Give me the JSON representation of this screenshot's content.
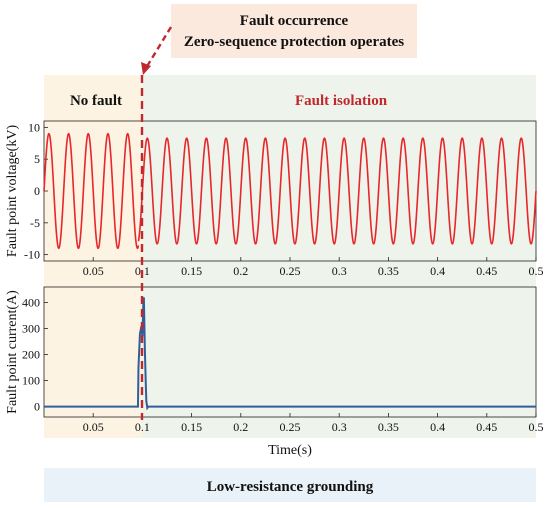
{
  "annotations": {
    "event_line1": "Fault occurrence",
    "event_line2": "Zero-sequence protection operates",
    "pre_region": "No fault",
    "post_region": "Fault isolation",
    "footer": "Low-resistance grounding"
  },
  "colors": {
    "voltage": "#e8262b",
    "current": "#2e5f9a",
    "pre_fill": "#fdf3e3",
    "post_fill": "#eef4ec",
    "event_box": "#fbe9dd",
    "footer_box": "#e9f2f8",
    "fault_line": "#c0282d",
    "post_label": "#c0282d"
  },
  "chart_data": [
    {
      "type": "line",
      "ylabel": "Fault point voltage(kV)",
      "xlabel": "",
      "xlim": [
        0,
        0.5
      ],
      "ylim": [
        -11,
        11
      ],
      "xticks": [
        0.05,
        0.1,
        0.15,
        0.2,
        0.25,
        0.3,
        0.35,
        0.4,
        0.45,
        0.5
      ],
      "xtick_labels": [
        "0.05",
        "0.1",
        "0.15",
        "0.2",
        "0.25",
        "0.3",
        "0.35",
        "0.4",
        "0.45",
        "0.5"
      ],
      "yticks": [
        10,
        5,
        0,
        -5,
        -10
      ],
      "ytick_labels": [
        "10",
        "5",
        "0",
        "-5",
        "-10"
      ],
      "grid": false,
      "fault_time": 0.096,
      "series": [
        {
          "waveform": "sinusoid",
          "frequency_hz": 50,
          "amplitude_kv": 9.0,
          "t_start": 0,
          "t_end": 0.096
        },
        {
          "waveform": "sinusoid",
          "frequency_hz": 50,
          "amplitude_kv": 8.3,
          "t_start": 0.096,
          "t_end": 0.5
        }
      ]
    },
    {
      "type": "line",
      "ylabel": "Fault point current(A)",
      "xlabel": "Time(s)",
      "xlim": [
        0,
        0.5
      ],
      "ylim": [
        -40,
        460
      ],
      "xticks": [
        0.05,
        0.1,
        0.15,
        0.2,
        0.25,
        0.3,
        0.35,
        0.4,
        0.45,
        0.5
      ],
      "xtick_labels": [
        "0.05",
        "0.1",
        "0.15",
        "0.2",
        "0.25",
        "0.3",
        "0.35",
        "0.4",
        "0.45",
        "0.5"
      ],
      "yticks": [
        400,
        300,
        200,
        100,
        0
      ],
      "ytick_labels": [
        "400",
        "300",
        "200",
        "100",
        "0"
      ],
      "grid": false,
      "fault_time": 0.096,
      "series": [
        {
          "x": [
            0,
            0.0955,
            0.096,
            0.0975,
            0.099,
            0.1,
            0.101,
            0.1015,
            0.102,
            0.1025,
            0.103,
            0.1035,
            0.104,
            0.105,
            0.106,
            0.5
          ],
          "y": [
            0,
            0,
            150,
            280,
            310,
            270,
            400,
            420,
            320,
            220,
            150,
            80,
            20,
            -5,
            0,
            0
          ]
        }
      ]
    }
  ]
}
